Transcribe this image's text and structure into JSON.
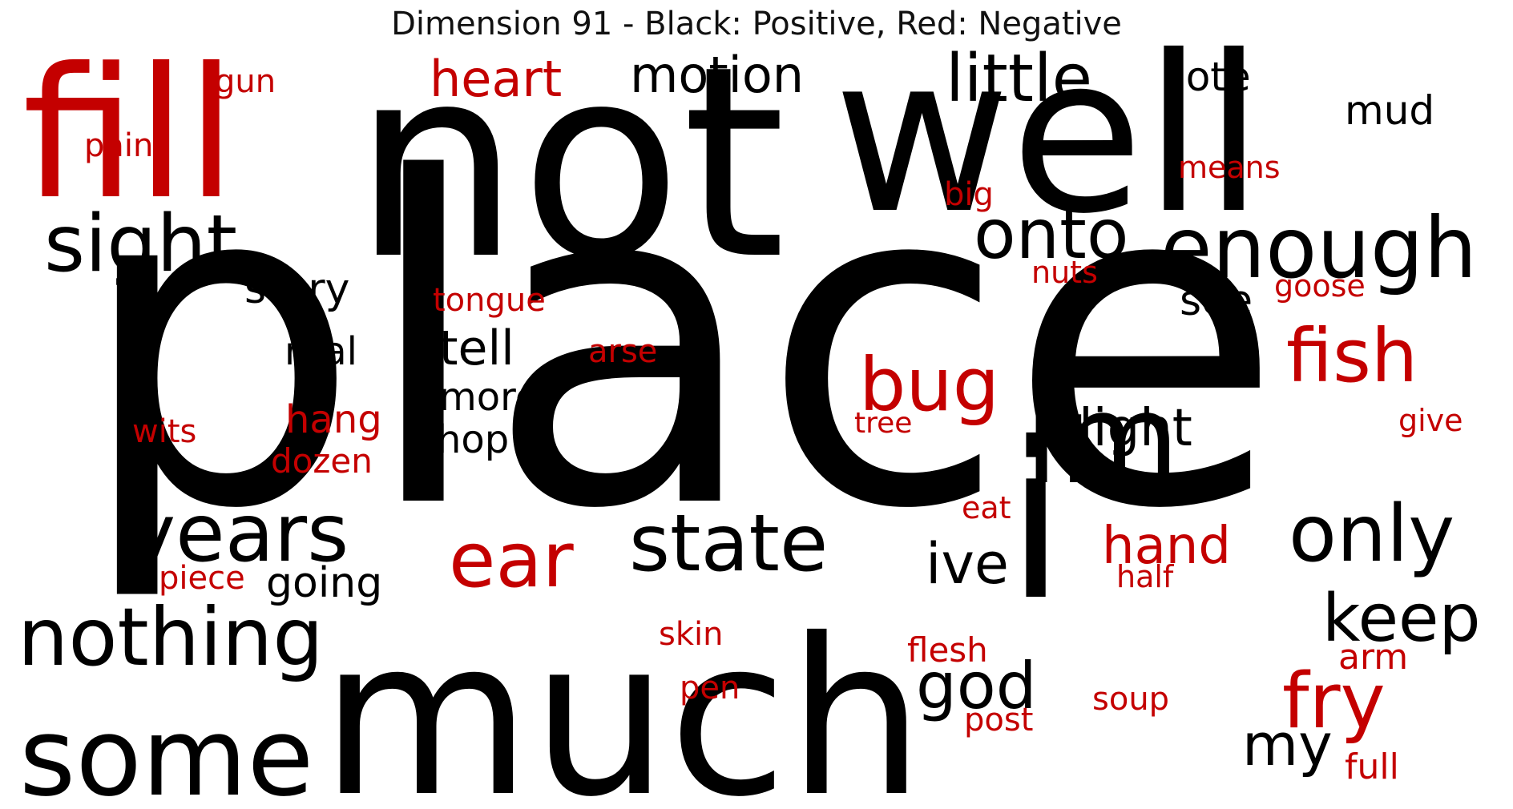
{
  "title": "Dimension 91 - Black: Positive, Red: Negative",
  "colors": {
    "positive": "#000000",
    "negative": "#c40000"
  },
  "words": [
    {
      "text": "place",
      "sign": "positive"
    },
    {
      "text": "not",
      "sign": "positive"
    },
    {
      "text": "much",
      "sign": "positive"
    },
    {
      "text": "well",
      "sign": "positive"
    },
    {
      "text": "fill",
      "sign": "negative"
    },
    {
      "text": "i",
      "sign": "positive"
    },
    {
      "text": "some",
      "sign": "positive"
    },
    {
      "text": "im",
      "sign": "positive"
    },
    {
      "text": "enough",
      "sign": "positive"
    },
    {
      "text": "nothing",
      "sign": "positive"
    },
    {
      "text": "years",
      "sign": "positive"
    },
    {
      "text": "state",
      "sign": "positive"
    },
    {
      "text": "sight",
      "sign": "positive"
    },
    {
      "text": "ear",
      "sign": "negative"
    },
    {
      "text": "only",
      "sign": "positive"
    },
    {
      "text": "onto",
      "sign": "positive"
    },
    {
      "text": "bug",
      "sign": "negative"
    },
    {
      "text": "fry",
      "sign": "negative"
    },
    {
      "text": "fish",
      "sign": "negative"
    },
    {
      "text": "little",
      "sign": "positive"
    },
    {
      "text": "keep",
      "sign": "positive"
    },
    {
      "text": "god",
      "sign": "positive"
    },
    {
      "text": "motion",
      "sign": "positive"
    },
    {
      "text": "heart",
      "sign": "negative"
    },
    {
      "text": "my",
      "sign": "positive"
    },
    {
      "text": "ive",
      "sign": "positive"
    },
    {
      "text": "hand",
      "sign": "negative"
    },
    {
      "text": "light",
      "sign": "positive"
    },
    {
      "text": "tell",
      "sign": "positive"
    },
    {
      "text": "note",
      "sign": "positive"
    },
    {
      "text": "story",
      "sign": "positive"
    },
    {
      "text": "mud",
      "sign": "positive"
    },
    {
      "text": "going",
      "sign": "positive"
    },
    {
      "text": "see",
      "sign": "positive"
    },
    {
      "text": "real",
      "sign": "positive"
    },
    {
      "text": "more",
      "sign": "positive"
    },
    {
      "text": "hop",
      "sign": "positive"
    },
    {
      "text": "hang",
      "sign": "negative"
    },
    {
      "text": "dozen",
      "sign": "negative"
    },
    {
      "text": "flesh",
      "sign": "negative"
    },
    {
      "text": "arm",
      "sign": "negative"
    },
    {
      "text": "full",
      "sign": "negative"
    },
    {
      "text": "soup",
      "sign": "negative"
    },
    {
      "text": "post",
      "sign": "negative"
    },
    {
      "text": "pen",
      "sign": "negative"
    },
    {
      "text": "skin",
      "sign": "negative"
    },
    {
      "text": "tongue",
      "sign": "negative"
    },
    {
      "text": "arse",
      "sign": "negative"
    },
    {
      "text": "means",
      "sign": "negative"
    },
    {
      "text": "big",
      "sign": "negative"
    },
    {
      "text": "nuts",
      "sign": "negative"
    },
    {
      "text": "goose",
      "sign": "negative"
    },
    {
      "text": "give",
      "sign": "negative"
    },
    {
      "text": "tree",
      "sign": "negative"
    },
    {
      "text": "eat",
      "sign": "negative"
    },
    {
      "text": "half",
      "sign": "negative"
    },
    {
      "text": "piece",
      "sign": "negative"
    },
    {
      "text": "wits",
      "sign": "negative"
    },
    {
      "text": "pain",
      "sign": "negative"
    },
    {
      "text": "gun",
      "sign": "negative"
    }
  ]
}
